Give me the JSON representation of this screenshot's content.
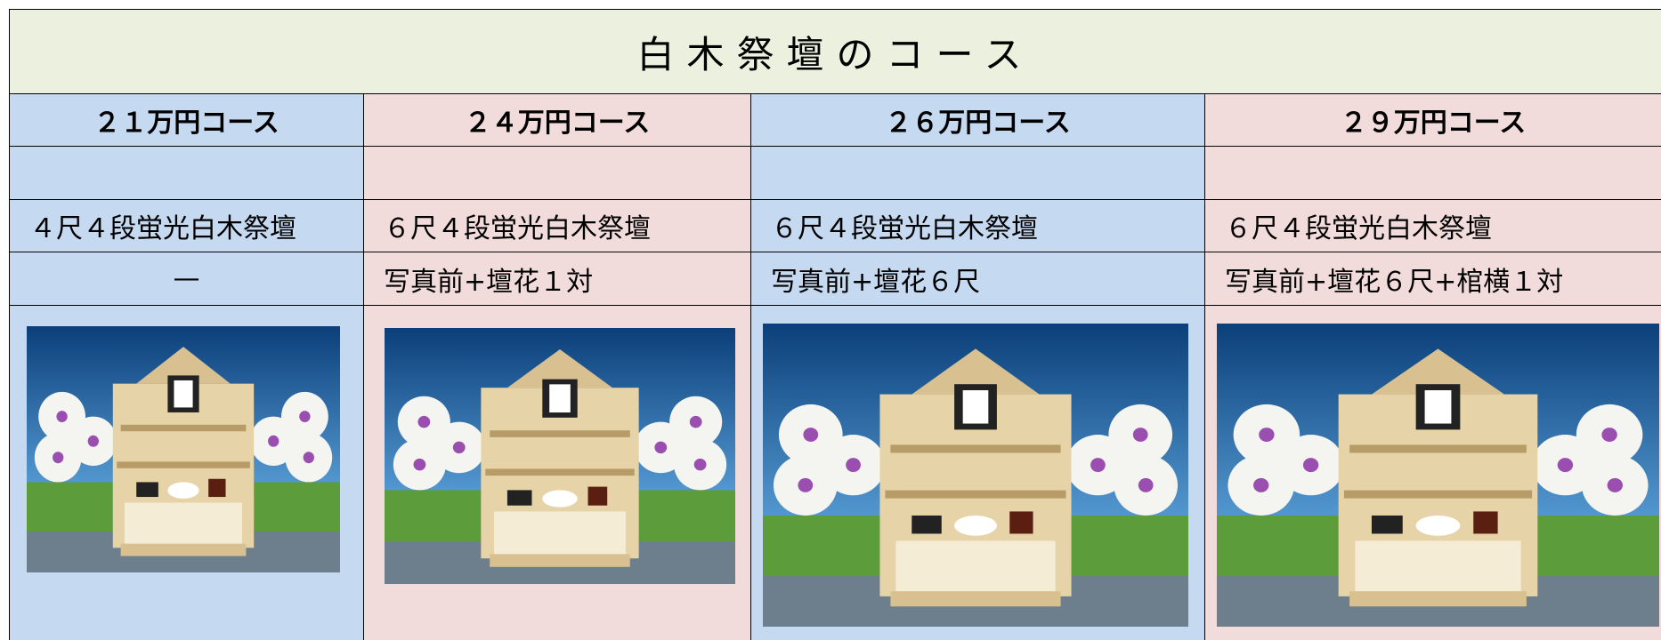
{
  "table": {
    "title": "白木祭壇のコース",
    "columns": [
      {
        "course": "２１万円コース",
        "altar": "４尺４段蛍光白木祭壇",
        "options": "—"
      },
      {
        "course": "２４万円コース",
        "altar": "６尺４段蛍光白木祭壇",
        "options": "写真前+壇花１対"
      },
      {
        "course": "２６万円コース",
        "altar": "６尺４段蛍光白木祭壇",
        "options": "写真前+壇花６尺"
      },
      {
        "course": "２９万円コース",
        "altar": "６尺４段蛍光白木祭壇",
        "options": "写真前+壇花６尺+棺横１対"
      }
    ]
  }
}
